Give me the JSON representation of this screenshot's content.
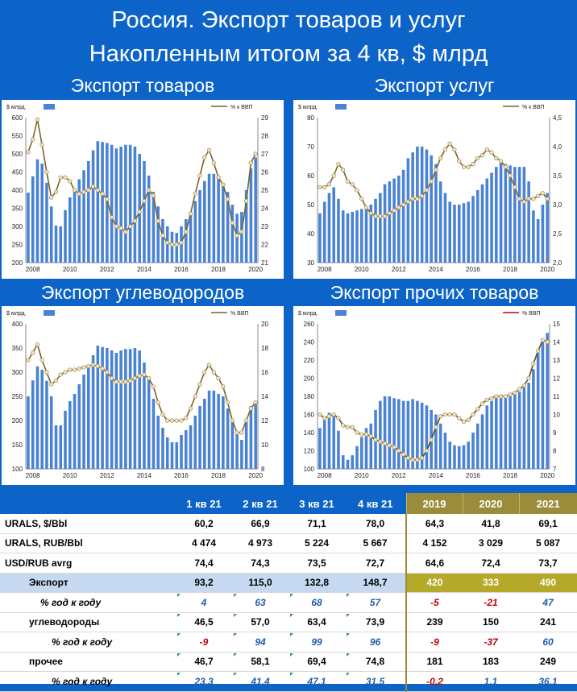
{
  "title_line1": "Россия. Экспорт товаров и услуг",
  "title_line2": "Накопленным итогом за 4 кв, $ млрд",
  "chart_data": [
    {
      "type": "bar",
      "title": "Экспорт товаров",
      "legend_bar": "$ млрд.",
      "legend_line": "% к ВВП",
      "x_start": 2007.75,
      "x_step": 0.25,
      "x_ticks": [
        "2008",
        "2010",
        "2012",
        "2014",
        "2016",
        "2018",
        "2020"
      ],
      "y_ticks": [
        "200",
        "250",
        "300",
        "350",
        "400",
        "450",
        "500",
        "550",
        "600"
      ],
      "y2_ticks": [
        "21",
        "22",
        "23",
        "24",
        "25",
        "26",
        "27",
        "28",
        "29"
      ],
      "ylim": [
        200,
        600
      ],
      "y2lim": [
        21,
        29
      ],
      "series": [
        {
          "name": "$ млрд.",
          "values": [
            393,
            438,
            485,
            473,
            420,
            355,
            302,
            300,
            345,
            380,
            400,
            430,
            455,
            480,
            510,
            535,
            533,
            530,
            525,
            515,
            520,
            525,
            525,
            520,
            500,
            480,
            440,
            395,
            355,
            320,
            300,
            285,
            282,
            300,
            320,
            340,
            370,
            400,
            425,
            445,
            445,
            440,
            420,
            395,
            360,
            335,
            340,
            400,
            460,
            490
          ]
        },
        {
          "name": "% к ВВП",
          "values": [
            27.1,
            27.8,
            28.9,
            27.5,
            26.0,
            24.6,
            24.9,
            25.7,
            25.7,
            25.5,
            25.0,
            24.8,
            24.9,
            25.0,
            25.2,
            25.0,
            24.8,
            24.5,
            23.5,
            23.0,
            22.9,
            22.7,
            23.0,
            23.3,
            23.8,
            24.4,
            25.0,
            24.7,
            23.3,
            22.5,
            22.1,
            22.0,
            22.0,
            22.1,
            22.7,
            23.7,
            24.8,
            25.8,
            26.8,
            27.2,
            26.5,
            25.7,
            25.3,
            24.5,
            23.2,
            22.5,
            22.7,
            24.4,
            26.5,
            27.0
          ]
        }
      ]
    },
    {
      "type": "bar",
      "title": "Экспорт услуг",
      "legend_bar": "$ млрд.",
      "legend_line": "% к ВВП",
      "x_start": 2007.75,
      "x_step": 0.25,
      "x_ticks": [
        "2008",
        "2010",
        "2012",
        "2014",
        "2016",
        "2018",
        "2020"
      ],
      "y_ticks": [
        "30",
        "40",
        "50",
        "60",
        "70",
        "80"
      ],
      "y2_ticks": [
        "2,0",
        "2,5",
        "3,0",
        "3,5",
        "4,0",
        "4,5"
      ],
      "ylim": [
        30,
        80
      ],
      "y2lim": [
        2.0,
        4.5
      ],
      "series": [
        {
          "name": "$ млрд.",
          "values": [
            47,
            51,
            54,
            56,
            52,
            48,
            47,
            47.5,
            48,
            48.5,
            49,
            50,
            52,
            54,
            57,
            58,
            59,
            60,
            62,
            66,
            68,
            70,
            70,
            69,
            67,
            64,
            58,
            54,
            51,
            50,
            50,
            50.5,
            51,
            53,
            55,
            57,
            59,
            61,
            63,
            64.5,
            64,
            63.5,
            63,
            63,
            63,
            58,
            48,
            45,
            50,
            54
          ]
        },
        {
          "name": "% к ВВП",
          "values": [
            3.3,
            3.3,
            3.35,
            3.5,
            3.7,
            3.6,
            3.4,
            3.35,
            3.25,
            3.1,
            2.95,
            2.85,
            2.8,
            2.8,
            2.8,
            2.85,
            2.9,
            2.95,
            3.0,
            3.05,
            3.1,
            3.1,
            3.15,
            3.25,
            3.4,
            3.6,
            3.8,
            3.95,
            4.05,
            3.95,
            3.75,
            3.65,
            3.65,
            3.7,
            3.8,
            3.85,
            3.95,
            3.9,
            3.8,
            3.75,
            3.65,
            3.5,
            3.3,
            3.1,
            3.05,
            3.1,
            3.1,
            3.15,
            3.2,
            3.1
          ]
        }
      ]
    },
    {
      "type": "bar",
      "title": "Экспорт углеводородов",
      "legend_bar": "$ млрд.",
      "legend_line": "% ВВП",
      "x_start": 2007.75,
      "x_step": 0.25,
      "x_ticks": [
        "2008",
        "2010",
        "2012",
        "2014",
        "2016",
        "2018",
        "2020"
      ],
      "y_ticks": [
        "100",
        "150",
        "200",
        "250",
        "300",
        "350",
        "400"
      ],
      "y2_ticks": [
        "8",
        "10",
        "12",
        "14",
        "16",
        "18",
        "20"
      ],
      "ylim": [
        100,
        400
      ],
      "y2lim": [
        8,
        20
      ],
      "series": [
        {
          "name": "$ млрд.",
          "values": [
            250,
            283,
            312,
            305,
            282,
            250,
            190,
            190,
            220,
            240,
            255,
            275,
            295,
            315,
            335,
            355,
            352,
            350,
            345,
            340,
            345,
            348,
            348,
            350,
            345,
            320,
            290,
            245,
            210,
            185,
            165,
            155,
            155,
            170,
            180,
            190,
            210,
            230,
            245,
            262,
            262,
            255,
            250,
            225,
            200,
            175,
            160,
            200,
            230,
            240
          ]
        },
        {
          "name": "% ВВП",
          "values": [
            17.0,
            17.6,
            18.3,
            17.0,
            16.0,
            15.0,
            15.3,
            15.8,
            16.0,
            16.2,
            16.2,
            16.3,
            16.4,
            16.5,
            16.6,
            16.5,
            16.3,
            16.0,
            15.5,
            15.2,
            15.2,
            15.2,
            15.3,
            15.5,
            15.7,
            15.8,
            15.5,
            14.8,
            13.5,
            12.5,
            12.0,
            12.0,
            12.0,
            12.0,
            12.2,
            13.0,
            14.0,
            15.0,
            16.0,
            16.6,
            16.0,
            15.5,
            14.8,
            13.5,
            12.0,
            11.0,
            11.0,
            12.0,
            13.0,
            13.5
          ]
        }
      ]
    },
    {
      "type": "bar",
      "title": "Экспорт прочих товаров",
      "legend_bar": "$ млрд.",
      "legend_line": "% ВВП",
      "x_start": 2007.75,
      "x_step": 0.25,
      "x_ticks": [
        "2008",
        "2010",
        "2012",
        "2014",
        "2016",
        "2018",
        "2020"
      ],
      "y_ticks": [
        "100",
        "120",
        "140",
        "160",
        "180",
        "200",
        "220",
        "240",
        "260"
      ],
      "y2_ticks": [
        "7",
        "8",
        "9",
        "10",
        "11",
        "12",
        "13",
        "14",
        "15"
      ],
      "ylim": [
        100,
        260
      ],
      "y2lim": [
        7,
        15
      ],
      "series": [
        {
          "name": "$ млрд.",
          "values": [
            145,
            154,
            162,
            160,
            142,
            115,
            110,
            115,
            125,
            135,
            145,
            150,
            165,
            175,
            180,
            180,
            178,
            177,
            175,
            175,
            177,
            175,
            173,
            170,
            165,
            160,
            150,
            140,
            130,
            126,
            125,
            126,
            130,
            140,
            150,
            160,
            170,
            175,
            180,
            182,
            181,
            180,
            182,
            185,
            190,
            195,
            210,
            230,
            240,
            250
          ]
        },
        {
          "name": "% ВВП",
          "values": [
            10.0,
            9.8,
            9.9,
            10.0,
            9.8,
            9.4,
            9.3,
            9.3,
            9.0,
            8.9,
            8.9,
            8.8,
            8.6,
            8.5,
            8.4,
            8.3,
            8.2,
            8.0,
            7.8,
            7.6,
            7.5,
            7.5,
            7.6,
            8.0,
            8.6,
            9.3,
            9.9,
            10.0,
            10.0,
            10.0,
            9.8,
            9.6,
            9.7,
            10.0,
            10.3,
            10.6,
            10.8,
            10.9,
            11.0,
            11.0,
            11.0,
            11.1,
            11.2,
            11.4,
            11.6,
            12.0,
            12.8,
            13.5,
            14.1,
            14.0
          ]
        }
      ]
    }
  ],
  "table": {
    "columns": [
      "1 кв 21",
      "2 кв 21",
      "3 кв 21",
      "4 кв 21",
      "2019",
      "2020",
      "2021"
    ],
    "rows": [
      {
        "label": "URALS, $/Bbl",
        "values": [
          "60,2",
          "66,9",
          "71,1",
          "78,0",
          "64,3",
          "41,8",
          "69,1"
        ]
      },
      {
        "label": "URALS, RUB/Bbl",
        "values": [
          "4 474",
          "4 973",
          "5 224",
          "5 667",
          "4 152",
          "3 029",
          "5 087"
        ]
      },
      {
        "label": "USD/RUB avrg",
        "values": [
          "74,4",
          "74,3",
          "73,5",
          "72,7",
          "64,6",
          "72,4",
          "73,7"
        ]
      },
      {
        "label": "Экспорт",
        "values": [
          "93,2",
          "115,0",
          "132,8",
          "148,7",
          "420",
          "333",
          "490"
        ]
      },
      {
        "label": "% год к году",
        "values": [
          "4",
          "63",
          "68",
          "57",
          "-5",
          "-21",
          "47"
        ]
      },
      {
        "label": "углеводороды",
        "values": [
          "46,5",
          "57,0",
          "63,4",
          "73,9",
          "239",
          "150",
          "241"
        ]
      },
      {
        "label": "% год к году",
        "values": [
          "-9",
          "94",
          "99",
          "96",
          "-9",
          "-37",
          "60"
        ]
      },
      {
        "label": "прочее",
        "values": [
          "46,7",
          "58,1",
          "69,4",
          "74,8",
          "181",
          "183",
          "249"
        ]
      },
      {
        "label": "% год к году",
        "values": [
          "23,3",
          "41,4",
          "47,1",
          "31,5",
          "-0,2",
          "1,1",
          "36,1"
        ]
      }
    ]
  }
}
